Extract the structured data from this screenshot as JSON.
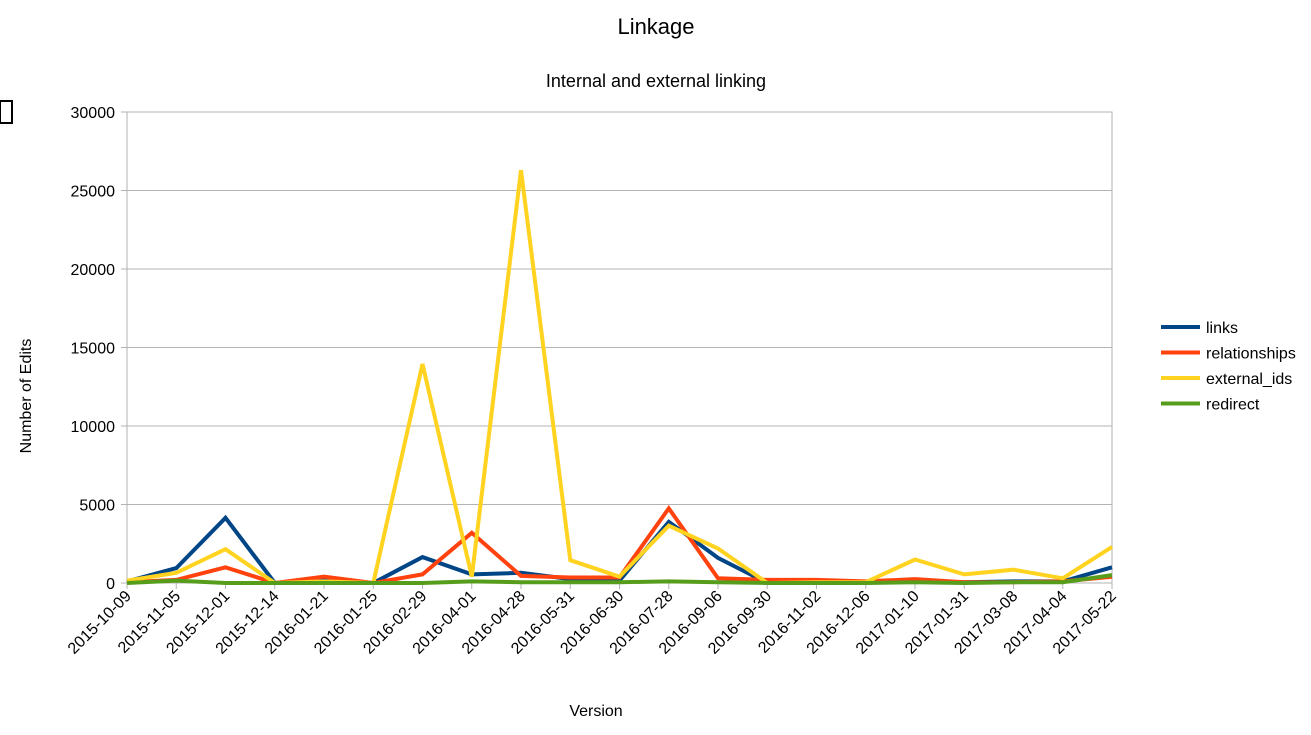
{
  "chart_data": {
    "type": "line",
    "title": "Linkage",
    "subtitle": "Internal and external linking",
    "xlabel": "Version",
    "ylabel": "Number of Edits",
    "ylim": [
      0,
      30000
    ],
    "yticks": [
      "0",
      "5000",
      "10000",
      "15000",
      "20000",
      "25000",
      "30000"
    ],
    "grid": true,
    "legend_position": "right",
    "categories": [
      "2015-10-09",
      "2015-11-05",
      "2015-12-01",
      "2015-12-14",
      "2016-01-21",
      "2016-01-25",
      "2016-02-29",
      "2016-04-01",
      "2016-04-28",
      "2016-05-31",
      "2016-06-30",
      "2016-07-28",
      "2016-09-06",
      "2016-09-30",
      "2016-11-02",
      "2016-12-06",
      "2017-01-10",
      "2017-01-31",
      "2017-03-08",
      "2017-04-04",
      "2017-05-22"
    ],
    "series": [
      {
        "name": "links",
        "color": "#004586",
        "values": [
          100,
          950,
          4150,
          0,
          250,
          0,
          1650,
          550,
          650,
          250,
          150,
          3900,
          1600,
          0,
          50,
          50,
          100,
          50,
          100,
          100,
          1000
        ]
      },
      {
        "name": "relationships",
        "color": "#ff420e",
        "values": [
          50,
          200,
          1000,
          0,
          400,
          0,
          550,
          3200,
          450,
          350,
          350,
          4750,
          300,
          200,
          200,
          100,
          250,
          50,
          50,
          100,
          400
        ]
      },
      {
        "name": "external_ids",
        "color": "#ffd320",
        "values": [
          150,
          650,
          2150,
          0,
          100,
          0,
          13950,
          400,
          26300,
          1450,
          400,
          3650,
          2200,
          0,
          50,
          50,
          1500,
          550,
          850,
          300,
          2300
        ]
      },
      {
        "name": "redirect",
        "color": "#579d1c",
        "values": [
          0,
          150,
          0,
          0,
          0,
          0,
          0,
          100,
          50,
          50,
          50,
          100,
          50,
          0,
          0,
          0,
          50,
          0,
          50,
          50,
          500
        ]
      }
    ]
  }
}
